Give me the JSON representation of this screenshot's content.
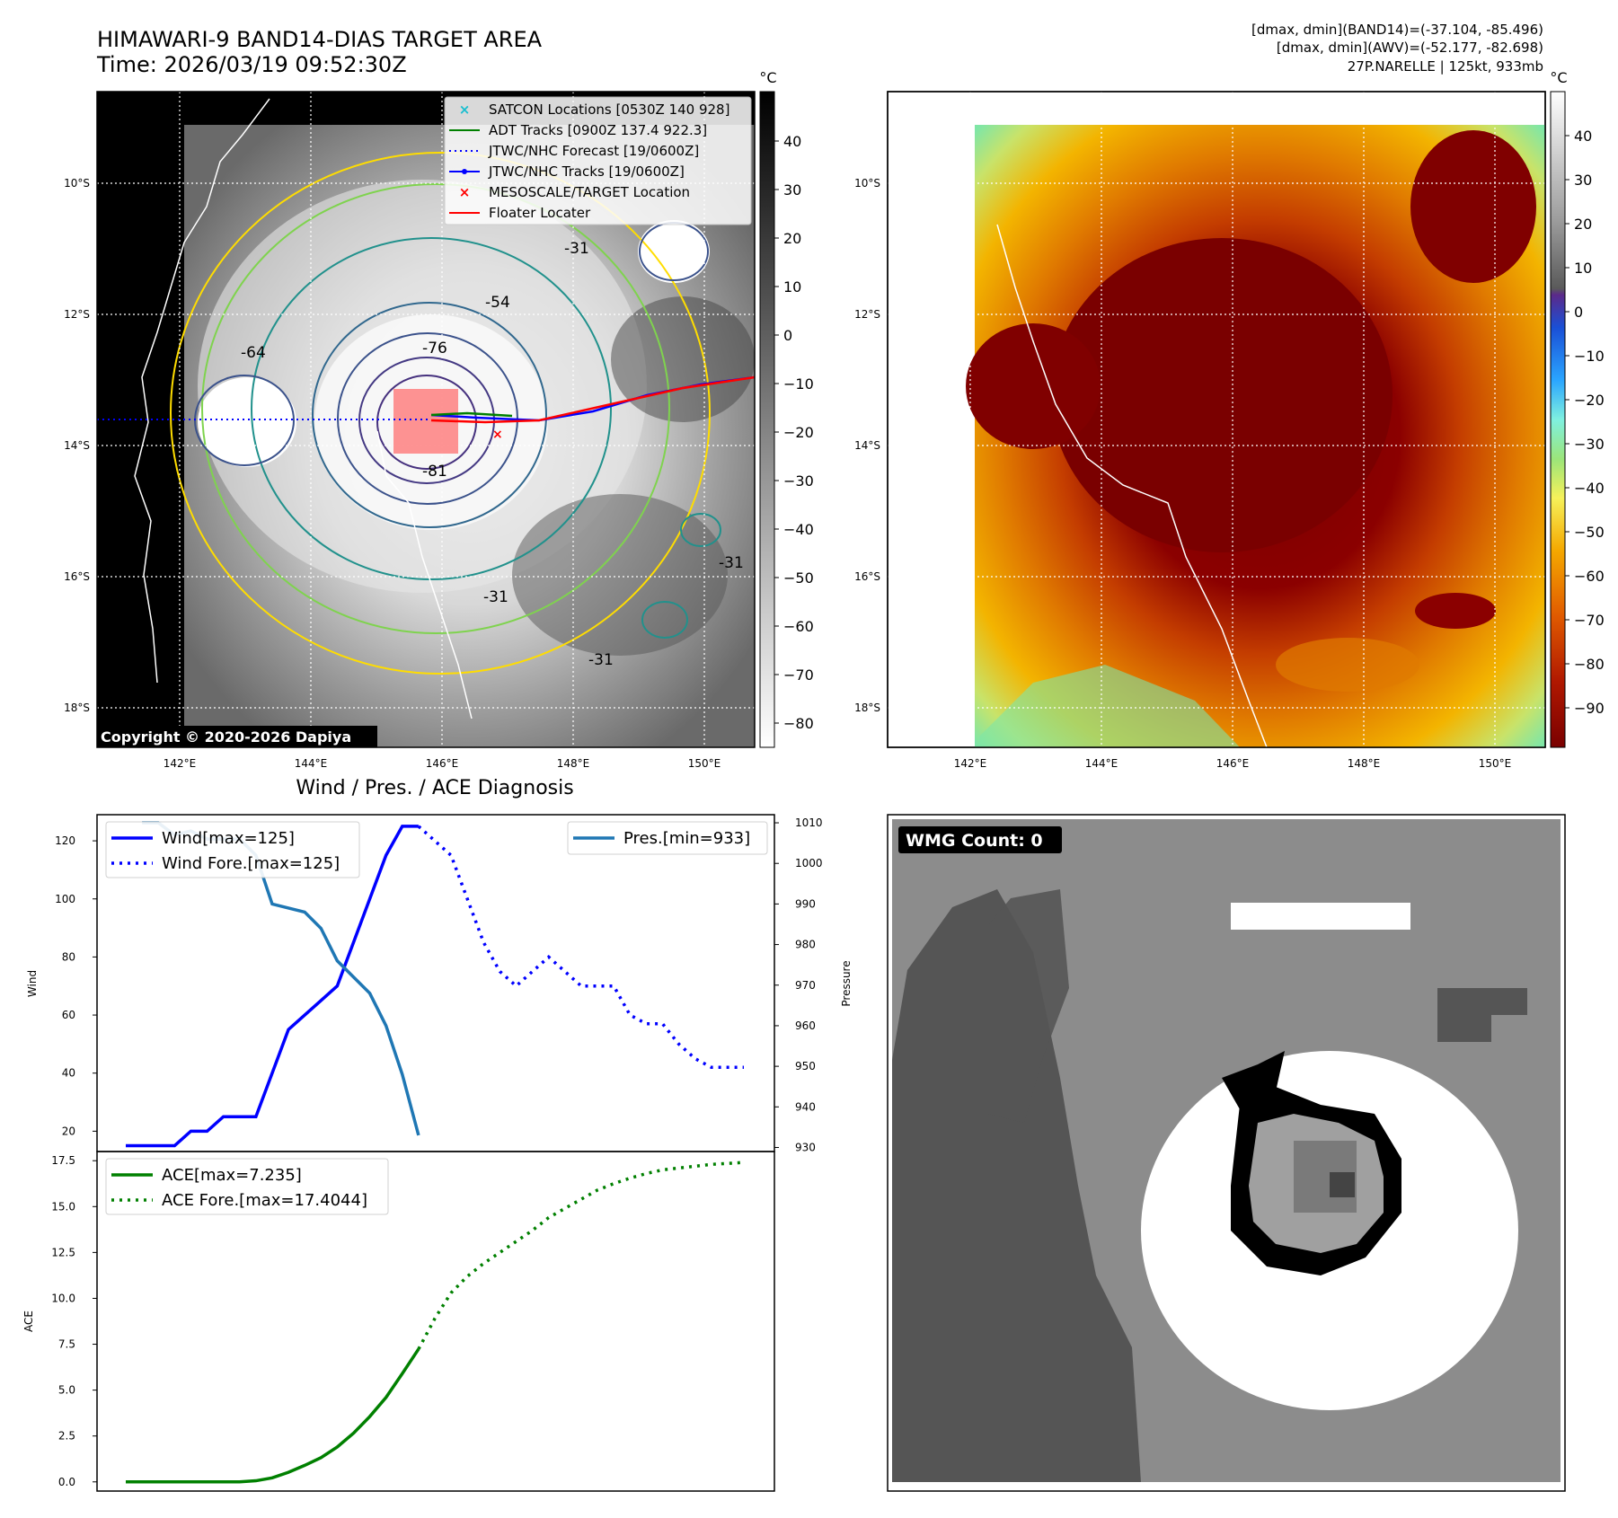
{
  "header": {
    "title": "HIMAWARI-9 BAND14-DIAS TARGET AREA",
    "time": "Time: 2026/03/19 09:52:30Z",
    "info_line1": "[dmax, dmin](BAND14)=(-37.104, -85.496)",
    "info_line2": "[dmax, dmin](AWV)=(-52.177, -82.698)",
    "info_line3": "27P.NARELLE | 125kt, 933mb"
  },
  "map": {
    "lon_labels": [
      "142°E",
      "144°E",
      "146°E",
      "148°E",
      "150°E"
    ],
    "lat_labels": [
      "10°S",
      "12°S",
      "14°S",
      "16°S",
      "18°S"
    ],
    "copyright": "Copyright © 2020-2026 Dapiya",
    "contour_labels": [
      "-76",
      "-81",
      "-31",
      "-54",
      "-64",
      "-31",
      "-31",
      "-31"
    ],
    "legend": [
      {
        "label": "SATCON Locations [0530Z 140 928]",
        "color": "#17becf",
        "style": "x"
      },
      {
        "label": "ADT Tracks [0900Z 137.4 922.3]",
        "color": "#008000",
        "style": "line"
      },
      {
        "label": "JTWC/NHC Forecast [19/0600Z]",
        "color": "#0000ff",
        "style": "dotted"
      },
      {
        "label": "JTWC/NHC Tracks [19/0600Z]",
        "color": "#0000ff",
        "style": "line-dot"
      },
      {
        "label": "MESOSCALE/TARGET Location",
        "color": "#ff0000",
        "style": "x"
      },
      {
        "label": "Floater Locater",
        "color": "#ff0000",
        "style": "line"
      }
    ],
    "colorbar_unit": "°C",
    "colorbar_ticks_gray": [
      "40",
      "30",
      "20",
      "10",
      "0",
      "−10",
      "−20",
      "−30",
      "−40",
      "−50",
      "−60",
      "−70",
      "−80"
    ],
    "colorbar_ticks_color": [
      "40",
      "30",
      "20",
      "10",
      "0",
      "−10",
      "−20",
      "−30",
      "−40",
      "−50",
      "−60",
      "−70",
      "−80",
      "−90"
    ]
  },
  "wmg": {
    "label": "WMG Count: 0"
  },
  "chart_data": [
    {
      "type": "line",
      "title": "Wind / Pres. / ACE Diagnosis",
      "ylabel": "Wind",
      "y2label": "Pressure",
      "ylim": [
        13,
        129
      ],
      "y2lim": [
        929,
        1012
      ],
      "yticks": [
        20,
        40,
        60,
        80,
        100,
        120
      ],
      "y2ticks": [
        930,
        940,
        950,
        960,
        970,
        980,
        990,
        1000,
        1010
      ],
      "x": [
        0,
        1,
        2,
        3,
        4,
        5,
        6,
        7,
        8,
        9,
        10,
        11,
        12,
        13,
        14,
        15,
        16,
        17,
        18,
        19
      ],
      "series": [
        {
          "name": "Wind[max=125]",
          "color": "#0000ff",
          "style": "solid",
          "x": [
            0,
            1,
            2,
            3,
            4,
            5,
            6,
            7,
            8,
            9,
            10,
            11,
            12,
            13,
            14,
            15,
            16,
            17,
            18
          ],
          "values": [
            15,
            15,
            15,
            15,
            20,
            20,
            25,
            25,
            25,
            40,
            55,
            60,
            65,
            70,
            85,
            100,
            115,
            125,
            125
          ]
        },
        {
          "name": "Wind Fore.[max=125]",
          "color": "#0000ff",
          "style": "dotted",
          "x": [
            18,
            19,
            20,
            21,
            22,
            23,
            24,
            25,
            26,
            27,
            28,
            29,
            30,
            31,
            32,
            33,
            34,
            35,
            36,
            37,
            38
          ],
          "values": [
            125,
            120,
            115,
            100,
            85,
            75,
            70,
            75,
            80,
            75,
            70,
            70,
            70,
            60,
            57,
            57,
            50,
            45,
            42,
            42,
            42
          ]
        },
        {
          "name": "Pres.[min=933]",
          "axis": "y2",
          "color": "#1f77b4",
          "style": "solid",
          "x": [
            1,
            2,
            3,
            4,
            5,
            6,
            7,
            8,
            9,
            10,
            11,
            12,
            13,
            14,
            15,
            16,
            17,
            18
          ],
          "values": [
            1010,
            1010,
            1007,
            1008,
            1006,
            1006,
            1006,
            1002,
            990,
            989,
            988,
            984,
            976,
            972,
            968,
            960,
            948,
            933
          ]
        }
      ]
    },
    {
      "type": "line",
      "ylabel": "ACE",
      "ylim": [
        -0.5,
        18.0
      ],
      "yticks": [
        "0.0",
        "2.5",
        "5.0",
        "7.5",
        "10.0",
        "12.5",
        "15.0",
        "17.5"
      ],
      "series": [
        {
          "name": "ACE[max=7.235]",
          "color": "#008000",
          "style": "solid",
          "x": [
            0,
            1,
            2,
            3,
            4,
            5,
            6,
            7,
            8,
            9,
            10,
            11,
            12,
            13,
            14,
            15,
            16,
            17,
            18
          ],
          "values": [
            0,
            0,
            0,
            0,
            0,
            0,
            0,
            0,
            0.06,
            0.22,
            0.52,
            0.9,
            1.32,
            1.9,
            2.65,
            3.56,
            4.6,
            5.9,
            7.235
          ]
        },
        {
          "name": "ACE Fore.[max=17.4044]",
          "color": "#008000",
          "style": "dotted",
          "x": [
            18,
            19,
            20,
            21,
            22,
            23,
            24,
            25,
            26,
            27,
            28,
            29,
            30,
            31,
            32,
            33,
            34,
            35,
            36,
            37,
            38
          ],
          "values": [
            7.235,
            8.9,
            10.3,
            11.2,
            11.9,
            12.5,
            13.1,
            13.7,
            14.4,
            14.9,
            15.4,
            15.9,
            16.25,
            16.55,
            16.8,
            17.0,
            17.1,
            17.2,
            17.3,
            17.35,
            17.4044
          ]
        }
      ]
    }
  ]
}
